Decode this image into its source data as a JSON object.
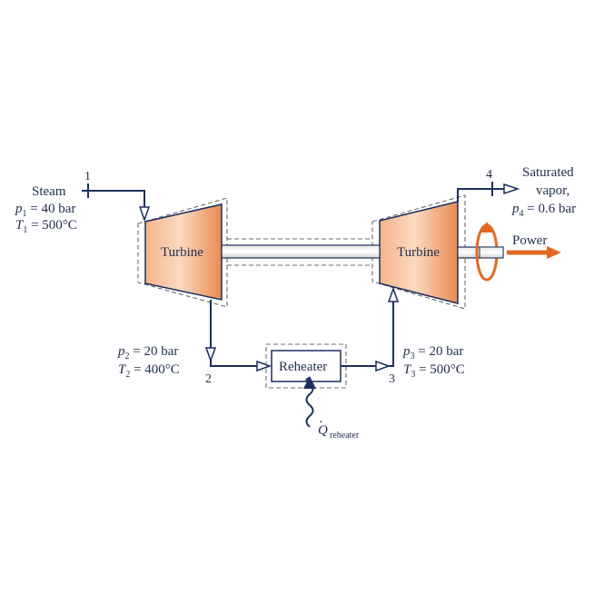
{
  "colors": {
    "pipe": "#1b2f5e",
    "turbine_light": "#fbd7bd",
    "turbine_dark": "#e8874e",
    "power_arrow": "#e06a22",
    "text": "#1f2d4d"
  },
  "states": {
    "s1": "1",
    "s2": "2",
    "s3": "3",
    "s4": "4"
  },
  "inlet": {
    "fluid": "Steam",
    "p_var": "p",
    "p_sub": "1",
    "p_val": " = 40 bar",
    "t_var": "T",
    "t_sub": "1",
    "t_val": " = 500°C"
  },
  "state2": {
    "p_var": "p",
    "p_sub": "2",
    "p_val": " = 20 bar",
    "t_var": "T",
    "t_sub": "2",
    "t_val": " = 400°C"
  },
  "state3": {
    "p_var": "p",
    "p_sub": "3",
    "p_val": " = 20 bar",
    "t_var": "T",
    "t_sub": "3",
    "t_val": " = 500°C"
  },
  "outlet": {
    "line1": "Saturated",
    "line2": "vapor,",
    "p_var": "p",
    "p_sub": "4",
    "p_val": " = 0.6 bar"
  },
  "components": {
    "turbine1": "Turbine",
    "turbine2": "Turbine",
    "reheater": "Reheater"
  },
  "heat": {
    "symbol": "Q",
    "dot": "·",
    "sub": "reheater"
  },
  "power": "Power"
}
